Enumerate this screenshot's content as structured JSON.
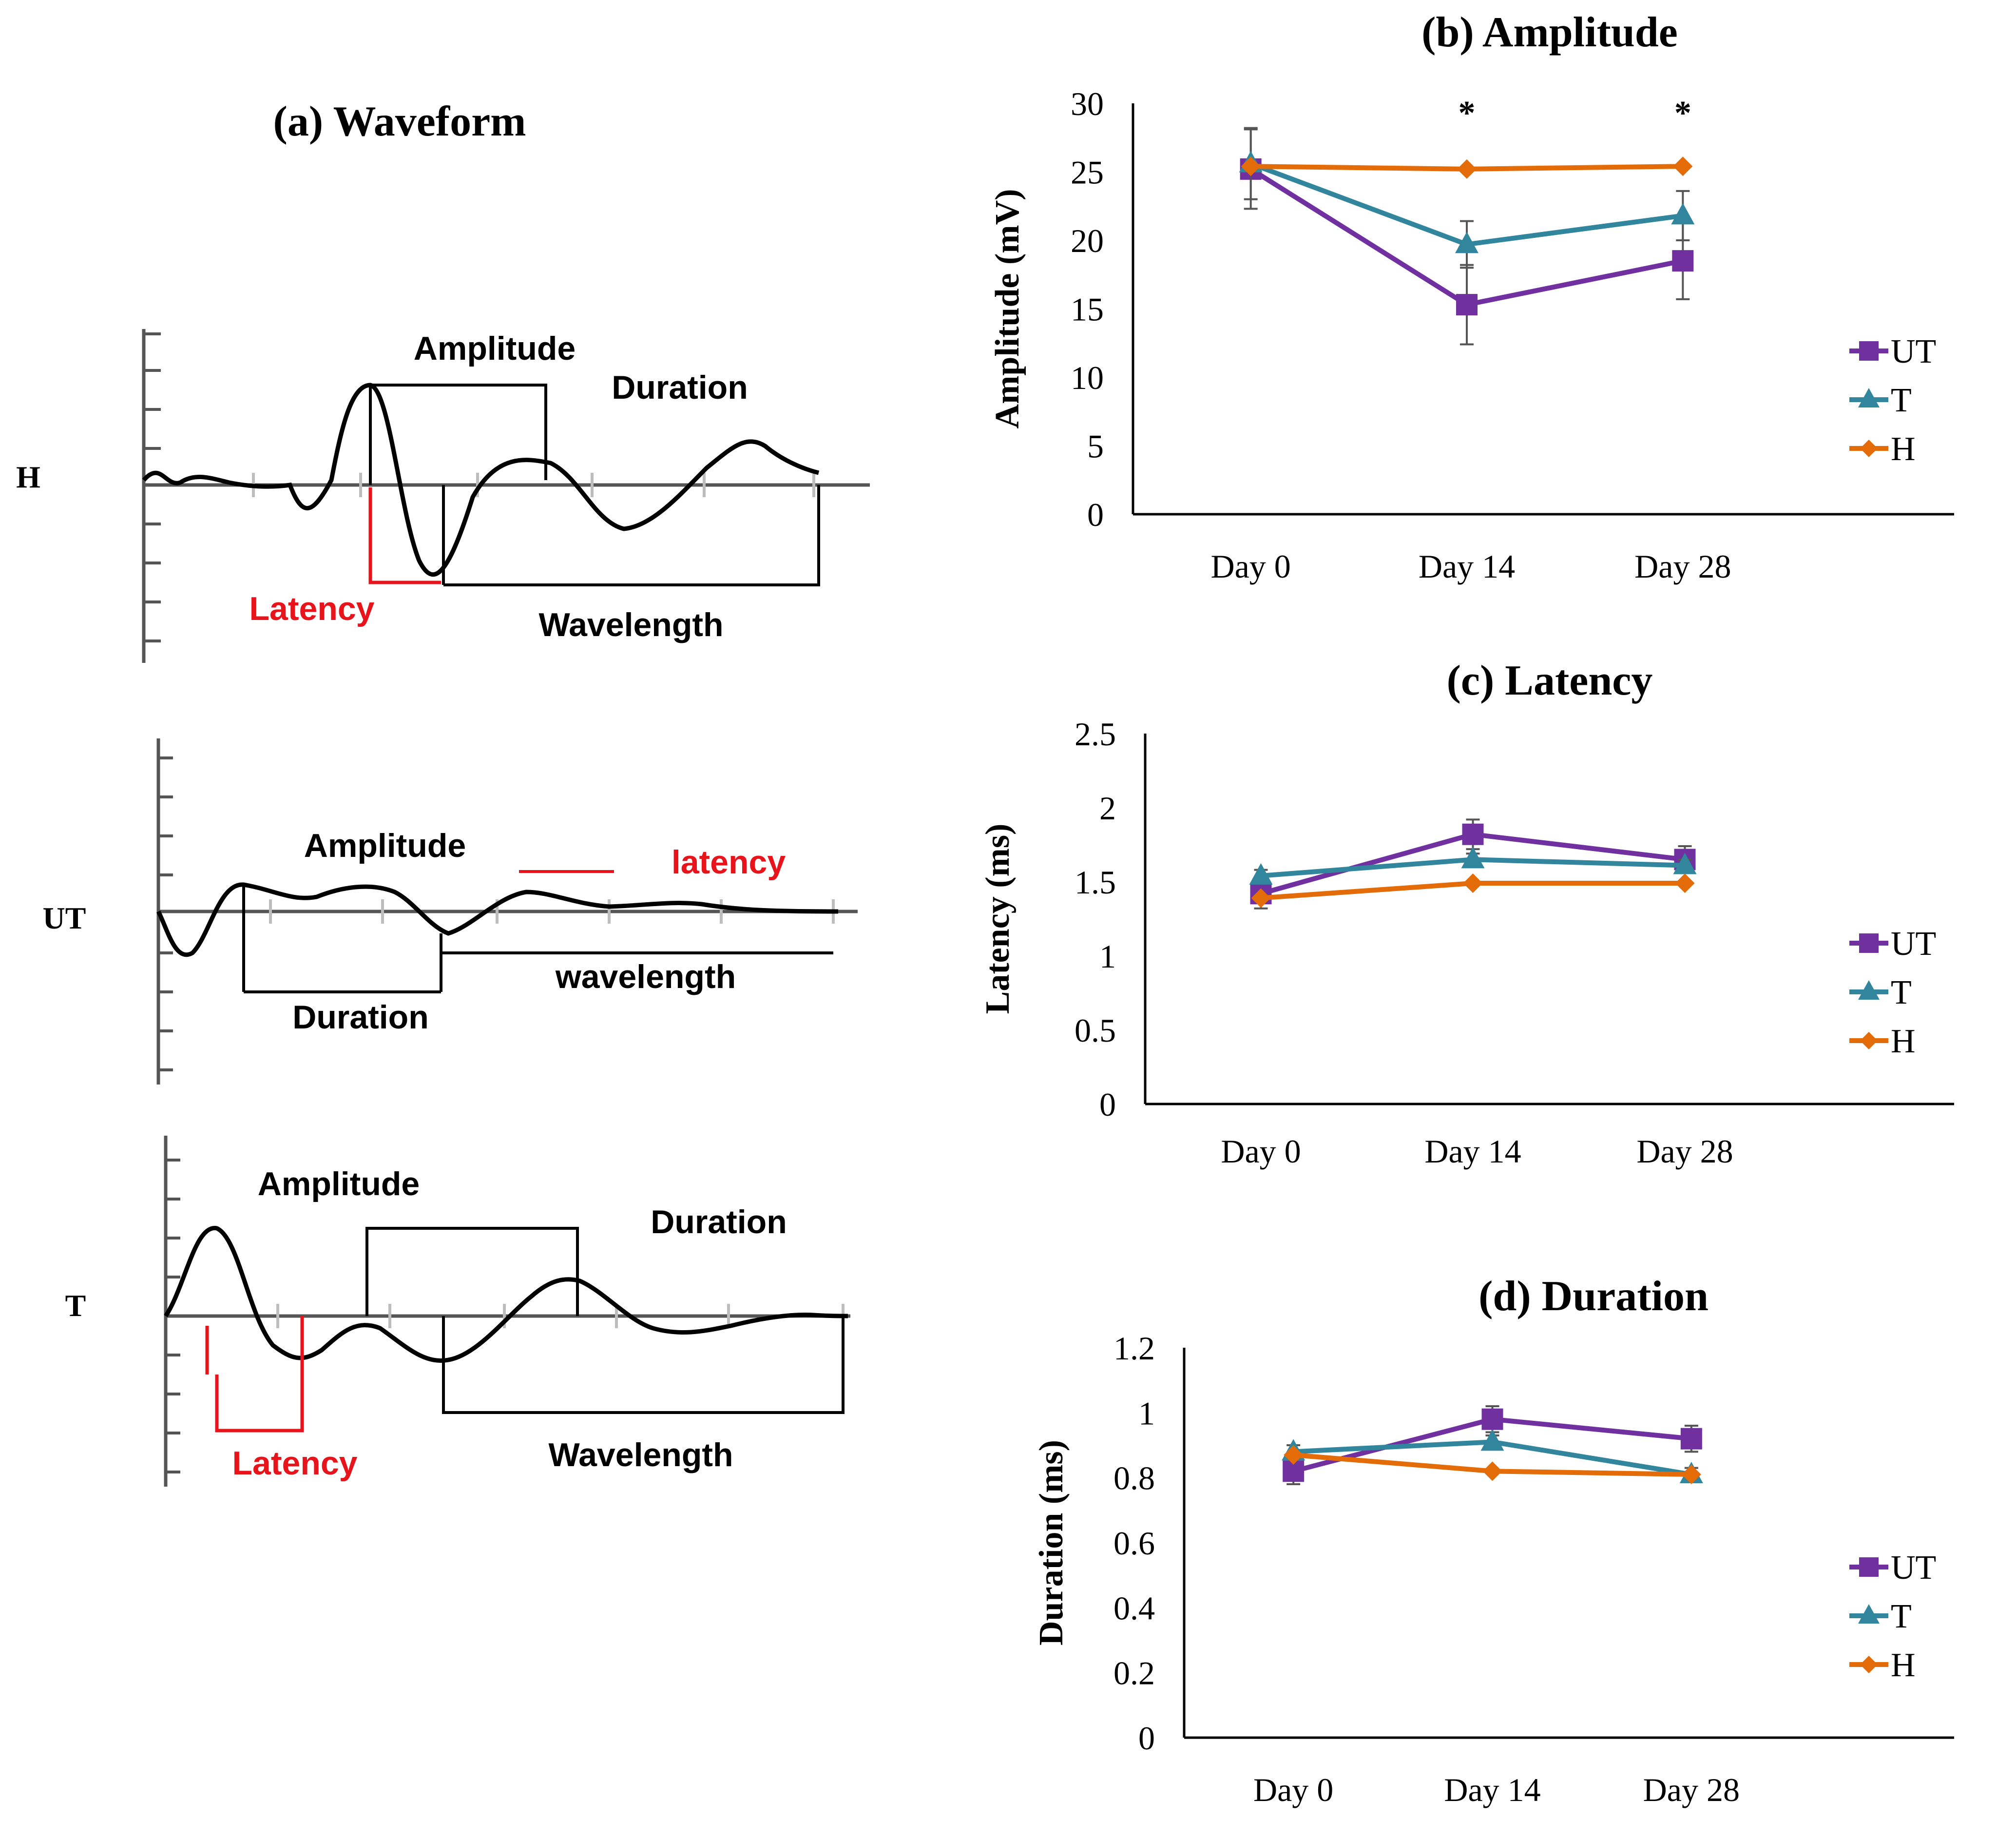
{
  "waveform_panel": {
    "title": "(a) Waveform",
    "colors": {
      "trace": "#000000",
      "latency": "#e8141c",
      "tick": "#bdbdbd"
    },
    "rows": [
      {
        "id": "H",
        "label": "H",
        "annotations": {
          "amplitude": "Amplitude",
          "duration": "Duration",
          "latency": "Latency",
          "wavelength": "Wavelength"
        }
      },
      {
        "id": "UT",
        "label": "UT",
        "annotations": {
          "amplitude": "Amplitude",
          "latency": "latency",
          "duration": "Duration",
          "wavelength": "wavelength"
        }
      },
      {
        "id": "T",
        "label": "T",
        "annotations": {
          "amplitude": "Amplitude",
          "duration": "Duration",
          "latency": "Latency",
          "wavelength": "Wavelength"
        }
      }
    ]
  },
  "chart_data": [
    {
      "id": "b",
      "type": "line",
      "title": "(b) Amplitude",
      "xlabel": "",
      "ylabel": "Amplitude (mV)",
      "categories": [
        "Day 0",
        "Day 14",
        "Day 28"
      ],
      "ylim": [
        0,
        30
      ],
      "yticks": [
        0,
        5,
        10,
        15,
        20,
        25,
        30
      ],
      "significance_marks": [
        {
          "category": "Day 14",
          "symbol": "*"
        },
        {
          "category": "Day 28",
          "symbol": "*"
        }
      ],
      "series": [
        {
          "name": "UT",
          "color": "#7030a0",
          "marker": "square",
          "values": [
            25.2,
            15.3,
            18.5
          ],
          "errors": [
            2.9,
            2.9,
            2.8
          ]
        },
        {
          "name": "T",
          "color": "#31859c",
          "marker": "triangle",
          "values": [
            25.6,
            19.7,
            21.8
          ],
          "errors": [
            2.6,
            1.7,
            1.8
          ]
        },
        {
          "name": "H",
          "color": "#e36c09",
          "marker": "diamond",
          "values": [
            25.4,
            25.2,
            25.4
          ],
          "errors": [
            0,
            0,
            0
          ]
        }
      ],
      "legend": "right"
    },
    {
      "id": "c",
      "type": "line",
      "title": "(c) Latency",
      "xlabel": "",
      "ylabel": "Latency (ms)",
      "categories": [
        "Day 0",
        "Day 14",
        "Day 28"
      ],
      "ylim": [
        0,
        2.5
      ],
      "yticks": [
        0,
        0.5,
        1,
        1.5,
        2,
        2.5
      ],
      "significance_marks": [],
      "series": [
        {
          "name": "UT",
          "color": "#7030a0",
          "marker": "square",
          "values": [
            1.42,
            1.82,
            1.65
          ],
          "errors": [
            0.1,
            0.1,
            0.09
          ]
        },
        {
          "name": "T",
          "color": "#31859c",
          "marker": "triangle",
          "values": [
            1.54,
            1.65,
            1.61
          ],
          "errors": [
            0.04,
            0.04,
            0.04
          ]
        },
        {
          "name": "H",
          "color": "#e36c09",
          "marker": "diamond",
          "values": [
            1.39,
            1.49,
            1.49
          ],
          "errors": [
            0,
            0,
            0
          ]
        }
      ],
      "legend": "right"
    },
    {
      "id": "d",
      "type": "line",
      "title": "(d) Duration",
      "xlabel": "",
      "ylabel": "Duration (ms)",
      "categories": [
        "Day 0",
        "Day 14",
        "Day 28"
      ],
      "ylim": [
        0,
        1.2
      ],
      "yticks": [
        0,
        0.2,
        0.4,
        0.6,
        0.8,
        1,
        1.2
      ],
      "significance_marks": [],
      "series": [
        {
          "name": "UT",
          "color": "#7030a0",
          "marker": "square",
          "values": [
            0.82,
            0.98,
            0.92
          ],
          "errors": [
            0.04,
            0.04,
            0.04
          ]
        },
        {
          "name": "T",
          "color": "#31859c",
          "marker": "triangle",
          "values": [
            0.88,
            0.91,
            0.81
          ],
          "errors": [
            0.02,
            0.02,
            0.02
          ]
        },
        {
          "name": "H",
          "color": "#e36c09",
          "marker": "diamond",
          "values": [
            0.87,
            0.82,
            0.81
          ],
          "errors": [
            0,
            0,
            0
          ]
        }
      ],
      "legend": "right"
    }
  ]
}
